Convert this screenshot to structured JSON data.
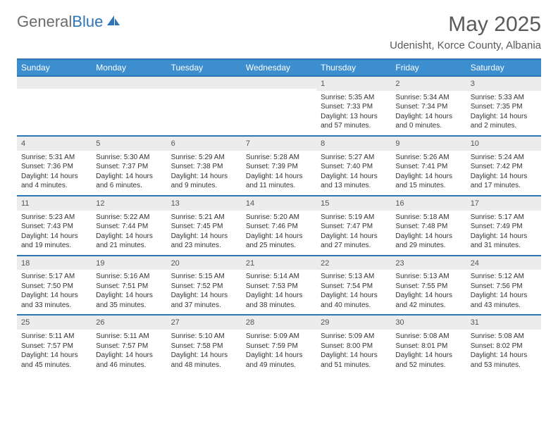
{
  "brand": {
    "part1": "General",
    "part2": "Blue"
  },
  "title": "May 2025",
  "location": "Udenisht, Korce County, Albania",
  "colors": {
    "header_bg": "#3c8ecf",
    "header_text": "#ffffff",
    "border": "#2e75b6",
    "daynum_bg": "#ececec",
    "text": "#333333"
  },
  "day_names": [
    "Sunday",
    "Monday",
    "Tuesday",
    "Wednesday",
    "Thursday",
    "Friday",
    "Saturday"
  ],
  "weeks": [
    [
      null,
      null,
      null,
      null,
      {
        "n": "1",
        "sr": "5:35 AM",
        "ss": "7:33 PM",
        "dl": "13 hours and 57 minutes."
      },
      {
        "n": "2",
        "sr": "5:34 AM",
        "ss": "7:34 PM",
        "dl": "14 hours and 0 minutes."
      },
      {
        "n": "3",
        "sr": "5:33 AM",
        "ss": "7:35 PM",
        "dl": "14 hours and 2 minutes."
      }
    ],
    [
      {
        "n": "4",
        "sr": "5:31 AM",
        "ss": "7:36 PM",
        "dl": "14 hours and 4 minutes."
      },
      {
        "n": "5",
        "sr": "5:30 AM",
        "ss": "7:37 PM",
        "dl": "14 hours and 6 minutes."
      },
      {
        "n": "6",
        "sr": "5:29 AM",
        "ss": "7:38 PM",
        "dl": "14 hours and 9 minutes."
      },
      {
        "n": "7",
        "sr": "5:28 AM",
        "ss": "7:39 PM",
        "dl": "14 hours and 11 minutes."
      },
      {
        "n": "8",
        "sr": "5:27 AM",
        "ss": "7:40 PM",
        "dl": "14 hours and 13 minutes."
      },
      {
        "n": "9",
        "sr": "5:26 AM",
        "ss": "7:41 PM",
        "dl": "14 hours and 15 minutes."
      },
      {
        "n": "10",
        "sr": "5:24 AM",
        "ss": "7:42 PM",
        "dl": "14 hours and 17 minutes."
      }
    ],
    [
      {
        "n": "11",
        "sr": "5:23 AM",
        "ss": "7:43 PM",
        "dl": "14 hours and 19 minutes."
      },
      {
        "n": "12",
        "sr": "5:22 AM",
        "ss": "7:44 PM",
        "dl": "14 hours and 21 minutes."
      },
      {
        "n": "13",
        "sr": "5:21 AM",
        "ss": "7:45 PM",
        "dl": "14 hours and 23 minutes."
      },
      {
        "n": "14",
        "sr": "5:20 AM",
        "ss": "7:46 PM",
        "dl": "14 hours and 25 minutes."
      },
      {
        "n": "15",
        "sr": "5:19 AM",
        "ss": "7:47 PM",
        "dl": "14 hours and 27 minutes."
      },
      {
        "n": "16",
        "sr": "5:18 AM",
        "ss": "7:48 PM",
        "dl": "14 hours and 29 minutes."
      },
      {
        "n": "17",
        "sr": "5:17 AM",
        "ss": "7:49 PM",
        "dl": "14 hours and 31 minutes."
      }
    ],
    [
      {
        "n": "18",
        "sr": "5:17 AM",
        "ss": "7:50 PM",
        "dl": "14 hours and 33 minutes."
      },
      {
        "n": "19",
        "sr": "5:16 AM",
        "ss": "7:51 PM",
        "dl": "14 hours and 35 minutes."
      },
      {
        "n": "20",
        "sr": "5:15 AM",
        "ss": "7:52 PM",
        "dl": "14 hours and 37 minutes."
      },
      {
        "n": "21",
        "sr": "5:14 AM",
        "ss": "7:53 PM",
        "dl": "14 hours and 38 minutes."
      },
      {
        "n": "22",
        "sr": "5:13 AM",
        "ss": "7:54 PM",
        "dl": "14 hours and 40 minutes."
      },
      {
        "n": "23",
        "sr": "5:13 AM",
        "ss": "7:55 PM",
        "dl": "14 hours and 42 minutes."
      },
      {
        "n": "24",
        "sr": "5:12 AM",
        "ss": "7:56 PM",
        "dl": "14 hours and 43 minutes."
      }
    ],
    [
      {
        "n": "25",
        "sr": "5:11 AM",
        "ss": "7:57 PM",
        "dl": "14 hours and 45 minutes."
      },
      {
        "n": "26",
        "sr": "5:11 AM",
        "ss": "7:57 PM",
        "dl": "14 hours and 46 minutes."
      },
      {
        "n": "27",
        "sr": "5:10 AM",
        "ss": "7:58 PM",
        "dl": "14 hours and 48 minutes."
      },
      {
        "n": "28",
        "sr": "5:09 AM",
        "ss": "7:59 PM",
        "dl": "14 hours and 49 minutes."
      },
      {
        "n": "29",
        "sr": "5:09 AM",
        "ss": "8:00 PM",
        "dl": "14 hours and 51 minutes."
      },
      {
        "n": "30",
        "sr": "5:08 AM",
        "ss": "8:01 PM",
        "dl": "14 hours and 52 minutes."
      },
      {
        "n": "31",
        "sr": "5:08 AM",
        "ss": "8:02 PM",
        "dl": "14 hours and 53 minutes."
      }
    ]
  ],
  "labels": {
    "sunrise": "Sunrise:",
    "sunset": "Sunset:",
    "daylight": "Daylight:"
  }
}
